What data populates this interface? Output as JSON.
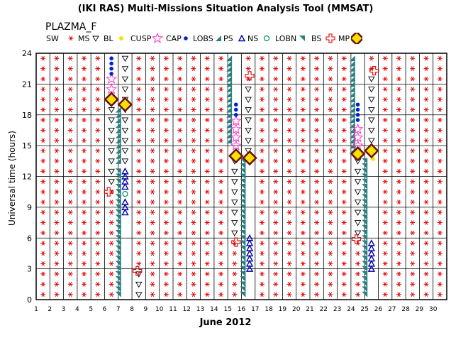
{
  "header": {
    "title": "(IKI RAS) Multi-Missions Situation Analysis Tool (MMSAT)",
    "subtitle": "PLAZMA_F"
  },
  "legend": [
    {
      "label": "SW",
      "marker": "sw-asterisk",
      "color": "#e00000"
    },
    {
      "label": "MS",
      "marker": "ms-triangle-down",
      "color": "#000000"
    },
    {
      "label": "BL",
      "marker": "bl-dot",
      "color": "#f5e100"
    },
    {
      "label": "CUSP",
      "marker": "cusp-star",
      "color": "#ff33cc"
    },
    {
      "label": "CAP",
      "marker": "cap-dot",
      "color": "#0022cc"
    },
    {
      "label": "LOBS",
      "marker": "lobs-wedge",
      "color": "#2a8080"
    },
    {
      "label": "PS",
      "marker": "ps-triangle",
      "color": "#0000aa"
    },
    {
      "label": "NS",
      "marker": "ns-circle",
      "color": "#009060"
    },
    {
      "label": "LOBN",
      "marker": "lobn-wedge",
      "color": "#2a8080"
    },
    {
      "label": "BS",
      "marker": "bs-plus",
      "color": "#e00000"
    },
    {
      "label": "MP",
      "marker": "mp-diamond",
      "color": "#6b1010"
    }
  ],
  "chart_data": {
    "type": "scatter",
    "title": "(IKI RAS) Multi-Missions Situation Analysis Tool (MMSAT)",
    "subtitle": "PLAZMA_F",
    "xlabel": "June 2012",
    "ylabel": "Universal time (hours)",
    "xlim": [
      1,
      31
    ],
    "ylim": [
      0,
      24
    ],
    "xticks": [
      1,
      2,
      3,
      4,
      5,
      6,
      7,
      8,
      9,
      10,
      11,
      12,
      13,
      14,
      15,
      16,
      17,
      18,
      19,
      20,
      21,
      22,
      23,
      24,
      25,
      26,
      27,
      28,
      29,
      30
    ],
    "yticks": [
      0,
      3,
      6,
      9,
      12,
      15,
      18,
      21,
      24
    ],
    "grid": true,
    "legend_position": "top",
    "sample_step_hours": 1,
    "note_units": "x = day of June 2012, y = UT hours",
    "series": [
      {
        "name": "SW",
        "day_segments": [
          {
            "day": 1.5,
            "from": 0.5,
            "to": 23.5
          },
          {
            "day": 2.5,
            "from": 0.5,
            "to": 23.5
          },
          {
            "day": 3.5,
            "from": 0.5,
            "to": 23.5
          },
          {
            "day": 4.5,
            "from": 0.5,
            "to": 23.5
          },
          {
            "day": 5.5,
            "from": 0.5,
            "to": 23.5
          },
          {
            "day": 6.5,
            "from": 0.5,
            "to": 10.5
          },
          {
            "day": 8.5,
            "from": 3.5,
            "to": 23.5
          },
          {
            "day": 9.5,
            "from": 0.5,
            "to": 23.5
          },
          {
            "day": 10.5,
            "from": 0.5,
            "to": 23.5
          },
          {
            "day": 11.5,
            "from": 0.5,
            "to": 23.5
          },
          {
            "day": 12.5,
            "from": 0.5,
            "to": 23.5
          },
          {
            "day": 13.5,
            "from": 0.5,
            "to": 23.5
          },
          {
            "day": 14.5,
            "from": 0.5,
            "to": 23.5
          },
          {
            "day": 15.5,
            "from": 0.5,
            "to": 5.5
          },
          {
            "day": 16.5,
            "from": 21.5,
            "to": 23.5
          },
          {
            "day": 17.5,
            "from": 0.5,
            "to": 23.5
          },
          {
            "day": 18.5,
            "from": 0.5,
            "to": 23.5
          },
          {
            "day": 19.5,
            "from": 0.5,
            "to": 23.5
          },
          {
            "day": 20.5,
            "from": 0.5,
            "to": 23.5
          },
          {
            "day": 21.5,
            "from": 0.5,
            "to": 23.5
          },
          {
            "day": 22.5,
            "from": 0.5,
            "to": 23.5
          },
          {
            "day": 23.5,
            "from": 0.5,
            "to": 23.5
          },
          {
            "day": 24.5,
            "from": 0.5,
            "to": 5.5
          },
          {
            "day": 25.5,
            "from": 22.5,
            "to": 23.5
          },
          {
            "day": 26.5,
            "from": 0.5,
            "to": 23.5
          },
          {
            "day": 27.5,
            "from": 0.5,
            "to": 23.5
          },
          {
            "day": 28.5,
            "from": 0.5,
            "to": 23.5
          },
          {
            "day": 29.5,
            "from": 0.5,
            "to": 23.5
          },
          {
            "day": 30.5,
            "from": 0.5,
            "to": 23.5
          }
        ]
      },
      {
        "name": "MS",
        "day_segments": [
          {
            "day": 6.5,
            "from": 11.5,
            "to": 18.5
          },
          {
            "day": 7.5,
            "from": 13.5,
            "to": 23.5
          },
          {
            "day": 8.5,
            "from": 0.5,
            "to": 2.5
          },
          {
            "day": 15.5,
            "from": 6.5,
            "to": 13.5
          },
          {
            "day": 16.5,
            "from": 14.5,
            "to": 20.5
          },
          {
            "day": 24.5,
            "from": 6.5,
            "to": 13.5
          },
          {
            "day": 25.5,
            "from": 14.5,
            "to": 21.5
          }
        ]
      },
      {
        "name": "BL",
        "points": [
          [
            25.6,
            13.7
          ]
        ]
      },
      {
        "name": "CUSP",
        "points": [
          [
            6.5,
            20.5
          ],
          [
            6.5,
            21.5
          ],
          [
            15.6,
            15.0
          ],
          [
            15.6,
            15.8
          ],
          [
            15.6,
            16.6
          ],
          [
            15.6,
            17.4
          ],
          [
            24.5,
            15.0
          ],
          [
            24.5,
            15.8
          ],
          [
            24.5,
            16.6
          ]
        ]
      },
      {
        "name": "CAP",
        "points": [
          [
            6.5,
            22.0
          ],
          [
            6.5,
            22.5
          ],
          [
            6.5,
            23.0
          ],
          [
            6.5,
            23.5
          ],
          [
            15.6,
            18.0
          ],
          [
            15.6,
            18.5
          ],
          [
            15.6,
            19.0
          ],
          [
            24.5,
            17.5
          ],
          [
            24.5,
            18.0
          ],
          [
            24.5,
            18.5
          ],
          [
            24.5,
            19.0
          ]
        ]
      },
      {
        "name": "LOBS",
        "day_segments": [
          {
            "day": 7.0,
            "from": 13.5,
            "to": 18.5
          },
          {
            "day": 15.1,
            "from": 15.5,
            "to": 23.5
          },
          {
            "day": 24.1,
            "from": 14.5,
            "to": 23.5
          }
        ]
      },
      {
        "name": "PS",
        "points": [
          [
            7.5,
            12.5
          ],
          [
            7.5,
            12.0
          ],
          [
            7.5,
            11.5
          ],
          [
            7.5,
            11.0
          ],
          [
            7.5,
            8.5
          ],
          [
            7.5,
            9.0
          ],
          [
            7.5,
            9.5
          ],
          [
            16.6,
            6.0
          ],
          [
            16.6,
            5.5
          ],
          [
            16.6,
            5.0
          ],
          [
            16.6,
            4.5
          ],
          [
            16.6,
            4.0
          ],
          [
            16.6,
            3.5
          ],
          [
            16.6,
            3.0
          ],
          [
            25.5,
            5.5
          ],
          [
            25.5,
            5.0
          ],
          [
            25.5,
            4.5
          ],
          [
            25.5,
            4.0
          ],
          [
            25.5,
            3.5
          ],
          [
            25.5,
            3.0
          ]
        ]
      },
      {
        "name": "NS",
        "points": [
          [
            7.5,
            10.3
          ]
        ]
      },
      {
        "name": "LOBN",
        "day_segments": [
          {
            "day": 7.0,
            "from": 0.5,
            "to": 12.5
          },
          {
            "day": 16.1,
            "from": 0.5,
            "to": 13.5
          },
          {
            "day": 25.0,
            "from": 0.5,
            "to": 13.5
          }
        ]
      },
      {
        "name": "BS",
        "points": [
          [
            6.3,
            10.5
          ],
          [
            8.4,
            2.8
          ],
          [
            16.6,
            21.8
          ],
          [
            15.6,
            5.6
          ],
          [
            24.4,
            5.9
          ],
          [
            25.7,
            22.3
          ]
        ]
      },
      {
        "name": "MP",
        "points": [
          [
            6.5,
            19.5
          ],
          [
            7.5,
            19.0
          ],
          [
            15.6,
            14.0
          ],
          [
            16.6,
            13.8
          ],
          [
            24.5,
            14.2
          ],
          [
            25.5,
            14.5
          ]
        ]
      }
    ]
  }
}
